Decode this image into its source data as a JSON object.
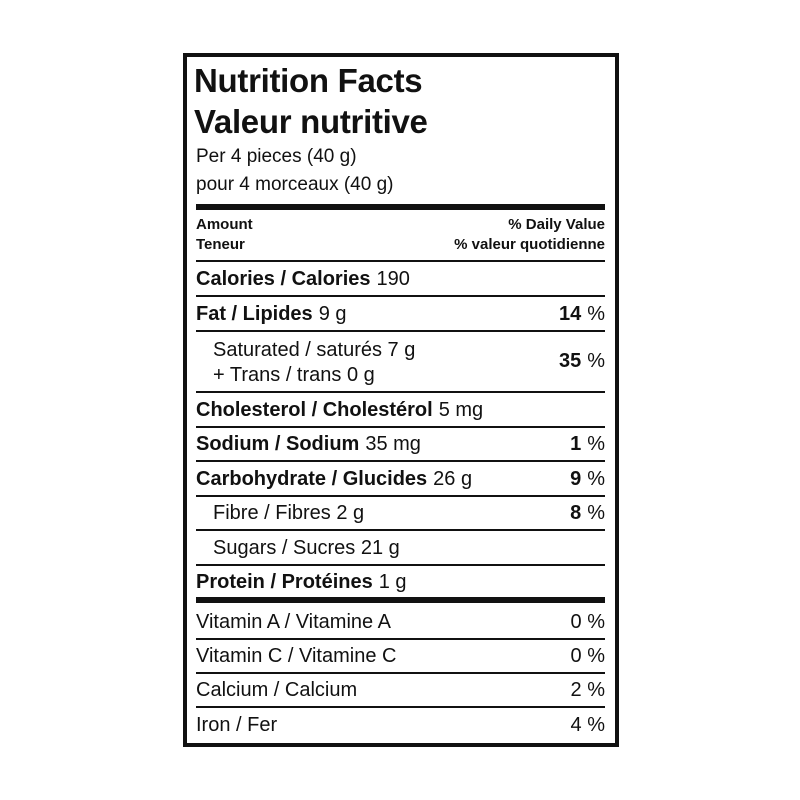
{
  "header": {
    "title": "Nutrition Facts",
    "title_fr": "Valeur nutritive",
    "serving": "Per 4 pieces (40 g)",
    "serving_fr": "pour 4 morceaux (40 g)"
  },
  "columns": {
    "amount": "Amount",
    "amount_fr": "Teneur",
    "daily_value": "% Daily Value",
    "daily_value_fr": "% valeur quotidienne"
  },
  "nutrients": [
    {
      "name": "Calories / Calories",
      "amount": "190"
    },
    {
      "name": "Fat / Lipides",
      "amount": "9 g",
      "dv": "14",
      "dv_unit": "%"
    },
    {
      "lines": [
        "Saturated / saturés 7 g",
        "+ Trans / trans 0 g"
      ],
      "dv": "35",
      "dv_unit": "%"
    },
    {
      "name": "Cholesterol / Cholestérol",
      "amount": "5 mg"
    },
    {
      "name": "Sodium / Sodium",
      "amount": "35 mg",
      "dv": "1",
      "dv_unit": "%"
    },
    {
      "name": "Carbohydrate / Glucides",
      "amount": "26 g",
      "dv": "9",
      "dv_unit": "%"
    },
    {
      "text": "Fibre / Fibres 2 g",
      "dv": "8",
      "dv_unit": "%"
    },
    {
      "text": "Sugars / Sucres 21 g"
    },
    {
      "name": "Protein / Protéines",
      "amount": "1 g"
    }
  ],
  "vitamins": [
    {
      "name": "Vitamin A / Vitamine A",
      "dv": "0 %"
    },
    {
      "name": "Vitamin C / Vitamine C",
      "dv": "0 %"
    },
    {
      "name": "Calcium / Calcium",
      "dv": "2 %"
    },
    {
      "name": "Iron / Fer",
      "dv": "4 %"
    }
  ]
}
